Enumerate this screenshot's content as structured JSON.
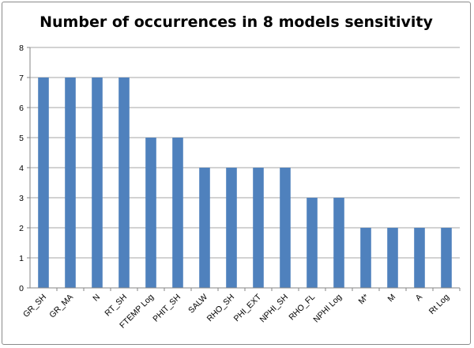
{
  "chart_data": {
    "type": "bar",
    "title": "Number of occurrences in 8 models sensitivity",
    "xlabel": "",
    "ylabel": "",
    "categories": [
      "GR_SH",
      "GR_MA",
      "N",
      "RT_SH",
      "FTEMP Log",
      "PHIT_SH",
      "SALW",
      "RHO_SH",
      "PHI_EXT",
      "NPHI_SH",
      "RHO_FL",
      "NPHI Log",
      "M*",
      "M",
      "A",
      "Rt Log"
    ],
    "values": [
      7,
      7,
      7,
      7,
      5,
      5,
      4,
      4,
      4,
      4,
      3,
      3,
      2,
      2,
      2,
      2
    ],
    "ylim": [
      0,
      8
    ],
    "yticks": [
      0,
      1,
      2,
      3,
      4,
      5,
      6,
      7,
      8
    ],
    "grid": true,
    "legend": "none",
    "colors": {
      "bar": "#4F81BD",
      "grid": "#868686",
      "axis": "#868686"
    }
  }
}
